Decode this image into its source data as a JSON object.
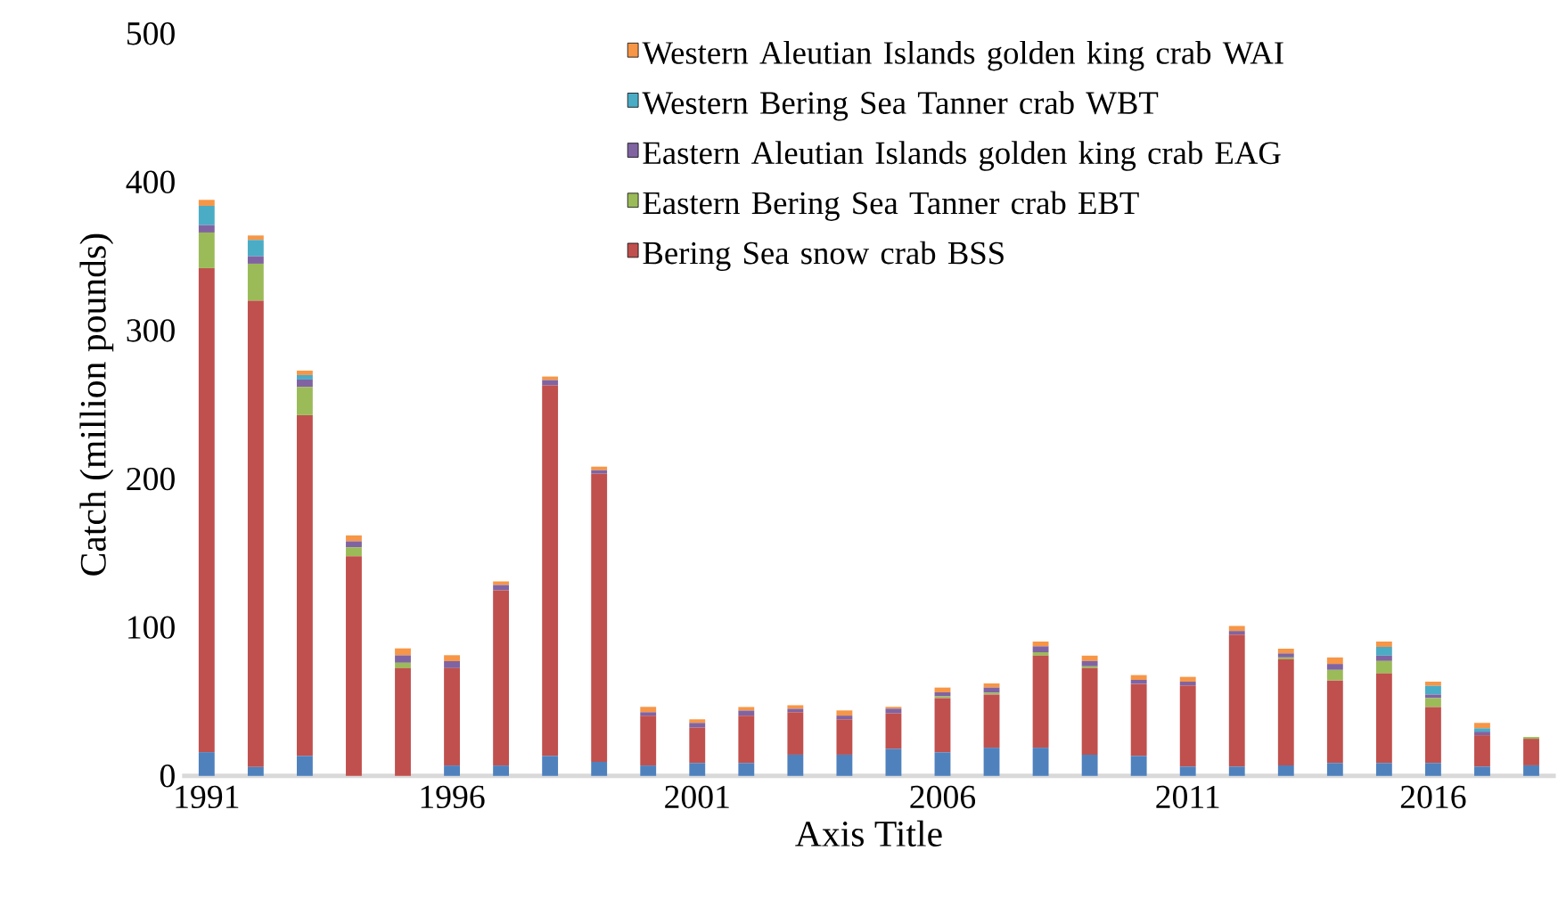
{
  "chart_data": {
    "type": "bar",
    "stacked": true,
    "xlabel": "Axis Title",
    "ylabel": "Catch (million pounds)",
    "categories": [
      "1991",
      null,
      null,
      null,
      null,
      "1996",
      null,
      null,
      null,
      null,
      "2001",
      null,
      null,
      null,
      null,
      "2006",
      null,
      null,
      null,
      null,
      "2011",
      null,
      null,
      null,
      null,
      "2016",
      null,
      null
    ],
    "series": [
      {
        "color": "#4f81bd",
        "values": [
          16,
          6,
          13.5,
          0,
          0,
          7,
          7,
          13.5,
          9.5,
          7,
          8.7,
          8.7,
          14.3,
          14.3,
          18.3,
          15.9,
          19,
          19,
          14.3,
          13.5,
          6.3,
          6.3,
          7.1,
          8.7,
          8.7,
          8.7,
          6.3,
          7.1
        ]
      },
      {
        "name": "Bering Sea snow crab BSS",
        "color": "#c0504d",
        "values": [
          326,
          314,
          229.5,
          148,
          72.6,
          65.6,
          118,
          249.5,
          194,
          33.5,
          23.8,
          31.8,
          28.6,
          23.8,
          23.8,
          36.5,
          35.8,
          62,
          58.3,
          48.4,
          54.7,
          88.9,
          71.5,
          55.6,
          60.3,
          37.7,
          21.1,
          17.9
        ]
      },
      {
        "name": "Eastern Bering Sea Tanner crab  EBT",
        "color": "#9bbb59",
        "values": [
          24,
          25,
          19,
          6,
          3.6,
          0,
          0,
          0,
          0,
          0,
          0,
          0,
          0,
          0,
          0,
          1.2,
          1.2,
          2.3,
          1.2,
          0,
          0,
          0,
          1.2,
          7.1,
          8.4,
          6,
          0,
          1.2
        ]
      },
      {
        "name": "Eastern Aleutian Islands golden king crab EAG",
        "color": "#8064a2",
        "values": [
          5,
          5,
          5,
          4,
          5,
          4.7,
          3.6,
          3.6,
          2.4,
          2.4,
          3.2,
          3.5,
          2.3,
          2.5,
          3.2,
          2.7,
          3.5,
          4,
          3.6,
          2.8,
          2.5,
          2.4,
          2.7,
          4,
          3.6,
          2.4,
          2.4,
          0
        ]
      },
      {
        "name": "Western Bering Sea Tanner crab WBT",
        "color": "#4bacc6",
        "values": [
          13,
          11,
          3,
          0,
          0,
          0,
          0,
          0,
          0,
          0,
          0,
          0,
          0,
          0,
          0,
          0,
          0,
          0,
          0,
          0,
          0,
          0,
          0,
          0,
          5.9,
          5.9,
          2.3,
          0
        ]
      },
      {
        "name": "Western Aleutian Islands golden king crab WAI",
        "color": "#f79646",
        "values": [
          4,
          3,
          3,
          4,
          4.7,
          4,
          2.4,
          2.4,
          2.4,
          3.6,
          2.4,
          2.4,
          2.4,
          3.5,
          1.2,
          3.2,
          2.8,
          3.2,
          3.6,
          3.2,
          3.2,
          3.4,
          3.2,
          4.4,
          3.6,
          2.8,
          3.6,
          0
        ]
      }
    ],
    "ylim": [
      0,
      500
    ],
    "yticks": [
      0,
      100,
      200,
      300,
      400,
      500
    ],
    "grid": false,
    "legend": "top right"
  }
}
